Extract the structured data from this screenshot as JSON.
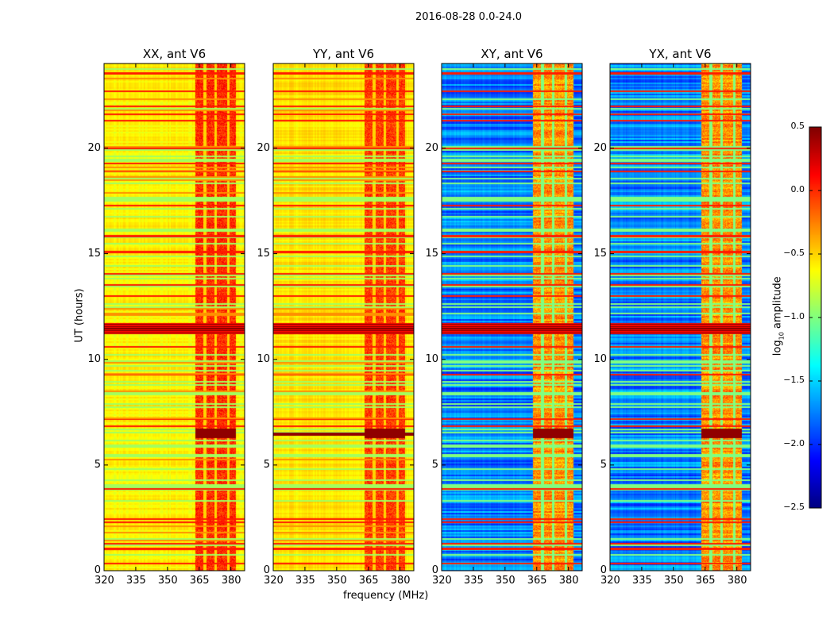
{
  "chart_data": {
    "type": "heatmap",
    "title": "2016-08-28 0.0-24.0",
    "xlabel": "frequency (MHz)",
    "ylabel": "UT (hours)",
    "xlim": [
      320,
      386.5
    ],
    "ylim": [
      0,
      24
    ],
    "xticks": [
      "320",
      "335",
      "350",
      "365",
      "380"
    ],
    "xtick_values": [
      320,
      335,
      350,
      365,
      380
    ],
    "yticks": [
      "0",
      "5",
      "10",
      "15",
      "20"
    ],
    "ytick_values": [
      0,
      5,
      10,
      15,
      20
    ],
    "colormap": "jet",
    "colorbar": {
      "label_prefix": "log",
      "label_sub": "10",
      "label_suffix": " amplitude",
      "clim": [
        -2.5,
        0.5
      ],
      "ticks": [
        "0.5",
        "0.0",
        "−0.5",
        "−1.0",
        "−1.5",
        "−2.0",
        "−2.5"
      ],
      "tick_values": [
        0.5,
        0.0,
        -0.5,
        -1.0,
        -1.5,
        -2.0,
        -2.5
      ]
    },
    "panels": [
      {
        "title": "XX, ant V6",
        "base_level": -0.6,
        "rfi_level": 0.0,
        "kind": "parallel"
      },
      {
        "title": "YY, ant V6",
        "base_level": -0.55,
        "rfi_level": -0.05,
        "kind": "parallel"
      },
      {
        "title": "XY, ant V6",
        "base_level": -1.75,
        "rfi_level": -0.3,
        "kind": "cross"
      },
      {
        "title": "YX, ant V6",
        "base_level": -1.75,
        "rfi_level": -0.3,
        "kind": "cross"
      }
    ],
    "rfi_band_MHz": [
      363,
      382
    ],
    "rfi_gaps_MHz": [
      367.5,
      372.5,
      378.5
    ],
    "saturated_rows_hours": [
      [
        11.2,
        11.75
      ],
      [
        6.3,
        6.75
      ]
    ],
    "bright_rows_hours": [
      0.35,
      1.05,
      1.3,
      2.3,
      2.45,
      3.9,
      6.85,
      7.2,
      9.3,
      10.6,
      13.0,
      13.55,
      14.05,
      15.1,
      15.85,
      17.3,
      18.9,
      19.3,
      20.0,
      21.3,
      21.6,
      22.0,
      22.7,
      23.55
    ]
  }
}
